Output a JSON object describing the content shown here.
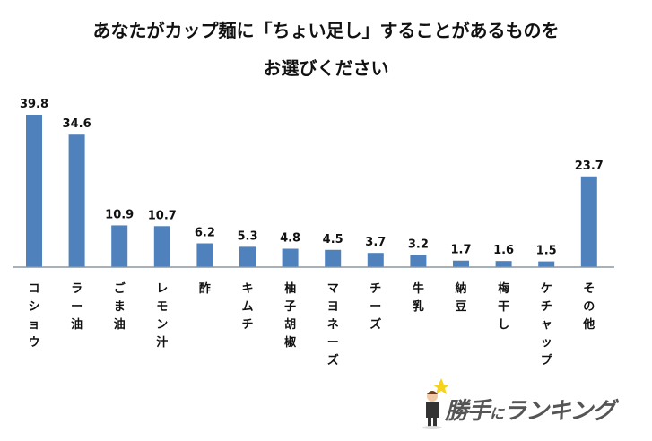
{
  "chart_data": {
    "type": "bar",
    "title": "あなたがカップ麺に「ちょい足し」することがあるものをお選びください",
    "title_lines": [
      "あなたがカップ麺に「ちょい足し」することがあるものを",
      "お選びください"
    ],
    "categories": [
      "コショウ",
      "ラー油",
      "ごま油",
      "レモン汁",
      "酢",
      "キムチ",
      "柚子胡椒",
      "マヨネーズ",
      "チーズ",
      "牛乳",
      "納豆",
      "梅干し",
      "ケチャップ",
      "その他"
    ],
    "values": [
      39.8,
      34.6,
      10.9,
      10.7,
      6.2,
      5.3,
      4.8,
      4.5,
      3.7,
      3.2,
      1.7,
      1.6,
      1.5,
      23.7
    ],
    "value_labels": [
      "39.8",
      "34.6",
      "10.9",
      "10.7",
      "6.2",
      "5.3",
      "4.8",
      "4.5",
      "3.7",
      "3.2",
      "1.7",
      "1.6",
      "1.5",
      "23.7"
    ],
    "ylim": [
      0,
      40
    ],
    "xlabel": "",
    "ylabel": "",
    "grid": false,
    "bar_color": "#4f81bd",
    "axis_color": "#8c96a0"
  },
  "logo": {
    "text_main": "勝手",
    "text_small": "に",
    "text_end": "ランキング"
  }
}
